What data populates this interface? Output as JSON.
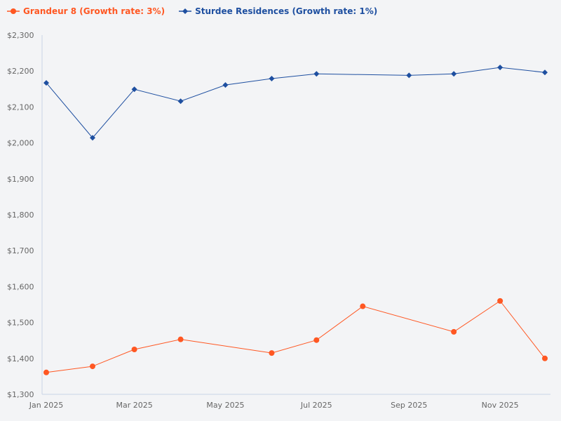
{
  "chart_data": {
    "type": "line",
    "title": "",
    "xlabel": "",
    "ylabel": "",
    "ylim": [
      1300,
      2300
    ],
    "y_ticks": [
      "$1,300",
      "$1,400",
      "$1,500",
      "$1,600",
      "$1,700",
      "$1,800",
      "$1,900",
      "$2,000",
      "$2,100",
      "$2,200",
      "$2,300"
    ],
    "x_ticks": [
      {
        "date": "2025-01-01",
        "label": "Jan 2025"
      },
      {
        "date": "2025-03-01",
        "label": "Mar 2025"
      },
      {
        "date": "2025-05-01",
        "label": "May 2025"
      },
      {
        "date": "2025-07-01",
        "label": "Jul 2025"
      },
      {
        "date": "2025-09-01",
        "label": "Sep 2025"
      },
      {
        "date": "2025-11-01",
        "label": "Nov 2025"
      }
    ],
    "xlim": [
      "2025-01-01",
      "2025-12-01"
    ],
    "grid": false,
    "legend": "top-left",
    "series": [
      {
        "name": "Grandeur 8 (Growth rate: 3%)",
        "color": "#ff5722",
        "marker": "circle",
        "points": [
          [
            "2025-01-01",
            1361
          ],
          [
            "2025-02-01",
            1378
          ],
          [
            "2025-03-01",
            1425
          ],
          [
            "2025-04-01",
            1453
          ],
          [
            "2025-06-01",
            1415
          ],
          [
            "2025-07-01",
            1451
          ],
          [
            "2025-08-01",
            1545
          ],
          [
            "2025-10-01",
            1474
          ],
          [
            "2025-11-01",
            1560
          ],
          [
            "2025-12-01",
            1400
          ]
        ]
      },
      {
        "name": "Sturdee Residences (Growth rate: 1%)",
        "color": "#1e4fa0",
        "marker": "diamond",
        "points": [
          [
            "2025-01-01",
            2167
          ],
          [
            "2025-02-01",
            2014
          ],
          [
            "2025-03-01",
            2149
          ],
          [
            "2025-04-01",
            2116
          ],
          [
            "2025-05-01",
            2161
          ],
          [
            "2025-06-01",
            2179
          ],
          [
            "2025-07-01",
            2192
          ],
          [
            "2025-09-01",
            2188
          ],
          [
            "2025-10-01",
            2192
          ],
          [
            "2025-11-01",
            2210
          ],
          [
            "2025-12-01",
            2196
          ]
        ]
      }
    ]
  }
}
